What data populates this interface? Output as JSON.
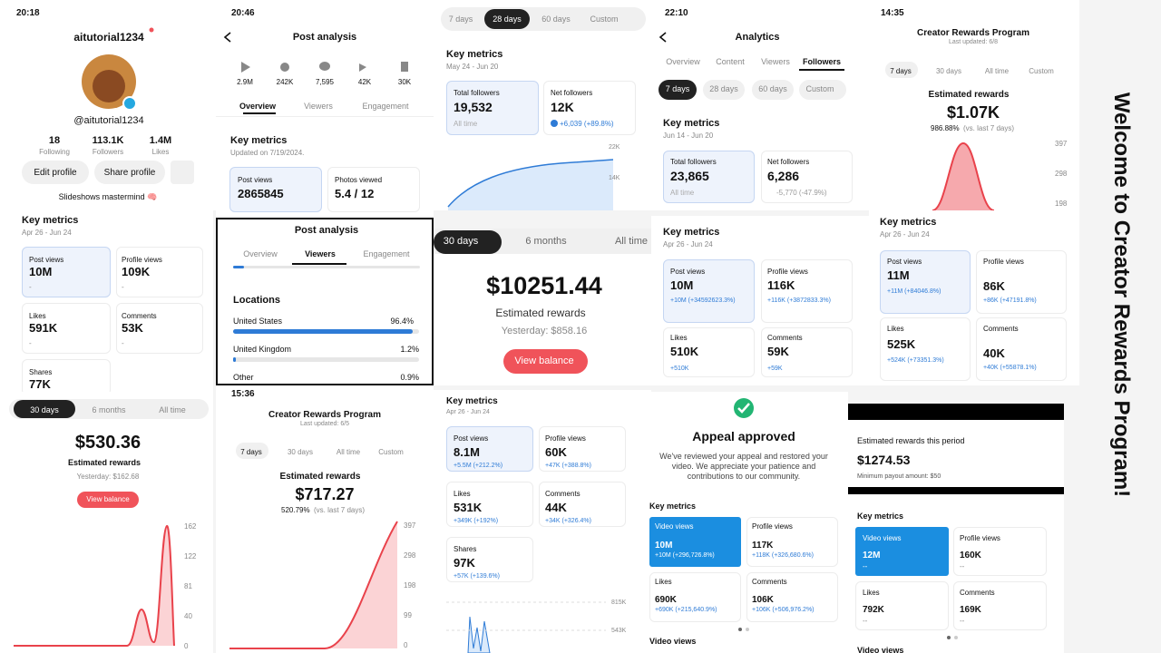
{
  "panels": [
    {
      "texts": [
        "20:18",
        "aitutorial1234",
        "@aitutorial1234",
        "18",
        "Following",
        "113.1K",
        "Followers",
        "1.4M",
        "Likes",
        "Edit profile",
        "Share profile",
        "Slideshows mastermind 🧠"
      ]
    },
    {
      "texts": [
        "Key metrics",
        "Apr 26 - Jun 24",
        "Post views",
        "10M",
        "-",
        "Profile views",
        "109K",
        "-",
        "Likes",
        "591K",
        "-",
        "Comments",
        "53K",
        "-",
        "Shares",
        "77K"
      ]
    },
    {
      "texts": [
        "30 days",
        "6 months",
        "All time",
        "$530.36",
        "Estimated rewards",
        "Yesterday: $162.68",
        "View balance",
        "162",
        "122",
        "81",
        "40",
        "0"
      ]
    },
    {
      "texts": [
        "20:46",
        "Post analysis",
        "2.9M",
        "242K",
        "7,595",
        "42K",
        "30K",
        "Overview",
        "Viewers",
        "Engagement",
        "Key metrics",
        "Updated on 7/19/2024.",
        "Post views",
        "2865845",
        "Photos viewed",
        "5.4 / 12"
      ]
    },
    {
      "texts": [
        "Post analysis",
        "Overview",
        "Viewers",
        "Engagement",
        "Locations",
        "United States",
        "96.4%",
        "United Kingdom",
        "1.2%",
        "Other",
        "0.9%"
      ]
    },
    {
      "texts": [
        "15:36",
        "Creator Rewards Program",
        "Last updated: 6/5",
        "7 days",
        "30 days",
        "All time",
        "Custom",
        "Estimated rewards",
        "$717.27",
        "520.79%",
        "(vs. last 7 days)",
        "397",
        "298",
        "198",
        "99",
        "0"
      ]
    },
    {
      "texts": [
        "7 days",
        "28 days",
        "60 days",
        "Custom",
        "Key metrics",
        "May 24 - Jun 20",
        "Total followers",
        "19,532",
        "All time",
        "Net followers",
        "12K",
        "+6,039 (+89.8%)",
        "22K",
        "14K"
      ]
    },
    {
      "texts": [
        "30 days",
        "6 months",
        "All time",
        "$10251.44",
        "Estimated rewards",
        "Yesterday: $858.16",
        "View balance"
      ]
    },
    {
      "texts": [
        "Key metrics",
        "Apr 26 - Jun 24",
        "Post views",
        "8.1M",
        "+5.5M (+212.2%)",
        "Profile views",
        "60K",
        "+47K (+388.8%)",
        "Likes",
        "531K",
        "+349K (+192%)",
        "Comments",
        "44K",
        "+34K (+326.4%)",
        "Shares",
        "97K",
        "+57K (+139.6%)",
        "815K",
        "543K"
      ]
    },
    {
      "texts": [
        "22:10",
        "Analytics",
        "Overview",
        "Content",
        "Viewers",
        "Followers",
        "7 days",
        "28 days",
        "60 days",
        "Custom",
        "Key metrics",
        "Jun 14 - Jun 20",
        "Total followers",
        "23,865",
        "All time",
        "Net followers",
        "6,286",
        "-5,770 (-47.9%)"
      ]
    },
    {
      "texts": [
        "Key metrics",
        "Apr 26 - Jun 24",
        "Post views",
        "10M",
        "+10M (+34592623.3%)",
        "Profile views",
        "116K",
        "+116K (+3872833.3%)",
        "Likes",
        "510K",
        "+510K",
        "Comments",
        "59K",
        "+59K"
      ]
    },
    {
      "texts": [
        "Appeal approved",
        "We've reviewed your appeal and restored your video. We appreciate your patience and contributions to our community.",
        "Key metrics",
        "Video views",
        "10M",
        "+10M (+296,726.8%)",
        "Profile views",
        "117K",
        "+118K (+326,680.6%)",
        "Likes",
        "690K",
        "+690K (+215,640.9%)",
        "Comments",
        "106K",
        "+106K (+506,976.2%)",
        "Video views"
      ]
    },
    {
      "texts": [
        "14:35",
        "Creator Rewards Program",
        "Last updated: 6/8",
        "7 days",
        "30 days",
        "All time",
        "Custom",
        "Estimated rewards",
        "$1.07K",
        "986.88%",
        "(vs. last 7 days)",
        "397",
        "298",
        "198"
      ]
    },
    {
      "texts": [
        "Key metrics",
        "Apr 26 - Jun 24",
        "Post views",
        "11M",
        "+11M (+84046.8%)",
        "Profile views",
        "86K",
        "+86K (+47191.8%)",
        "Likes",
        "525K",
        "+524K (+73351.3%)",
        "Comments",
        "40K",
        "+40K (+55878.1%)"
      ]
    },
    {
      "texts": [
        "Estimated rewards this period",
        "$1274.53",
        "Minimum payout amount: $50",
        "Key metrics",
        "Video views",
        "12M",
        "--",
        "Profile views",
        "160K",
        "--",
        "Likes",
        "792K",
        "--",
        "Comments",
        "169K",
        "--",
        "Video views"
      ]
    }
  ],
  "side_caption": "Welcome to Creator Rewards Program!"
}
